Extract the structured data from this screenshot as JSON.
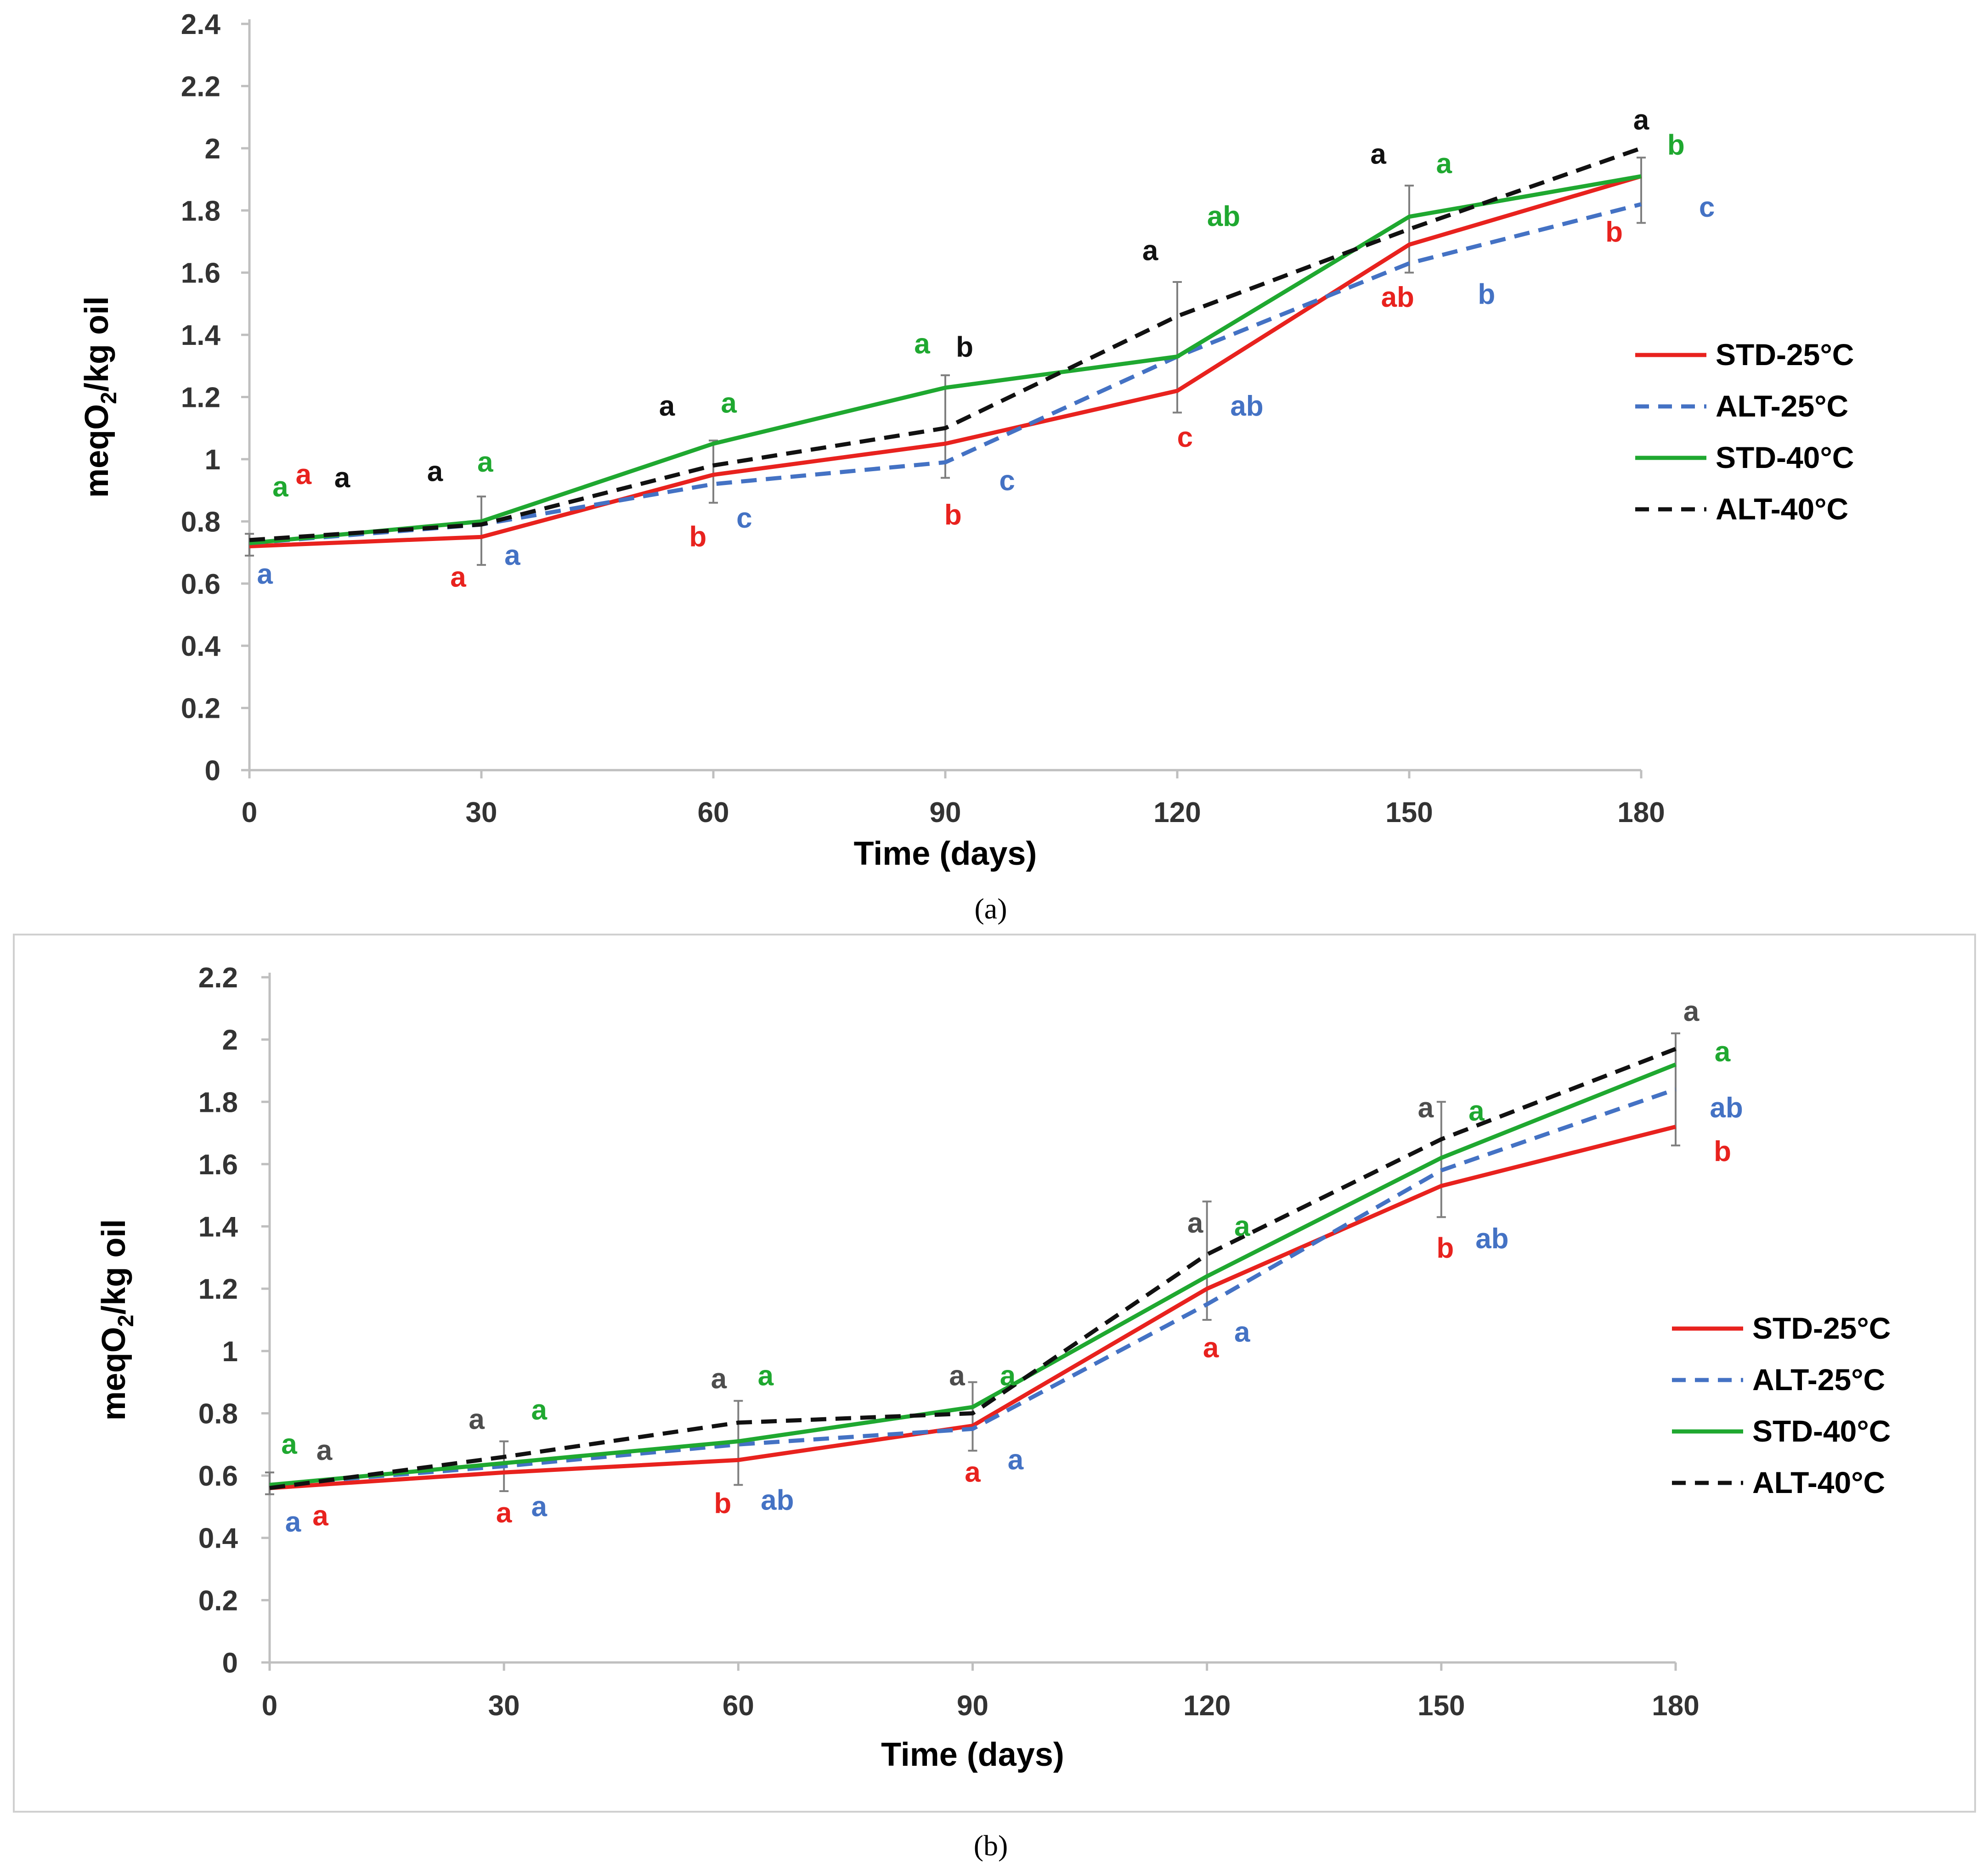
{
  "figure": {
    "caption_a": "(a)",
    "caption_b": "(b)"
  },
  "chart_data": [
    {
      "type": "line",
      "panel": "a",
      "title": "",
      "xlabel": "Time (days)",
      "ylabel_main": "meqO",
      "ylabel_sub": "2",
      "ylabel_rest": "/kg oil",
      "x": [
        0,
        30,
        60,
        90,
        120,
        150,
        180
      ],
      "xticks": [
        "0",
        "30",
        "60",
        "90",
        "120",
        "150",
        "180"
      ],
      "ylim": [
        0,
        2.4
      ],
      "yticks": [
        "0",
        "0.2",
        "0.4",
        "0.6",
        "0.8",
        "1",
        "1.2",
        "1.4",
        "1.6",
        "1.8",
        "2",
        "2.2",
        "2.4"
      ],
      "grid": false,
      "legend_position": "right",
      "series": [
        {
          "name": "STD-25°C",
          "color": "#e8221e",
          "dash": "solid",
          "values": [
            0.72,
            0.75,
            0.95,
            1.05,
            1.22,
            1.69,
            1.91
          ]
        },
        {
          "name": "ALT-25°C",
          "color": "#4472c4",
          "dash": "dashed",
          "values": [
            0.73,
            0.79,
            0.92,
            0.99,
            1.33,
            1.63,
            1.82
          ]
        },
        {
          "name": "STD-40°C",
          "color": "#1fa830",
          "dash": "solid",
          "values": [
            0.73,
            0.8,
            1.05,
            1.23,
            1.33,
            1.78,
            1.91
          ]
        },
        {
          "name": "ALT-40°C",
          "color": "#111111",
          "dash": "dashed",
          "values": [
            0.74,
            0.79,
            0.98,
            1.1,
            1.46,
            1.74,
            2.0
          ]
        }
      ],
      "error_bars": [
        {
          "x": 0,
          "low": 0.69,
          "high": 0.76
        },
        {
          "x": 30,
          "low": 0.66,
          "high": 0.88
        },
        {
          "x": 60,
          "low": 0.86,
          "high": 1.06
        },
        {
          "x": 90,
          "low": 0.94,
          "high": 1.27
        },
        {
          "x": 120,
          "low": 1.15,
          "high": 1.57
        },
        {
          "x": 150,
          "low": 1.6,
          "high": 1.88
        },
        {
          "x": 180,
          "low": 1.76,
          "high": 1.97
        }
      ],
      "annotations": [
        {
          "text": "a",
          "x": 4,
          "y": 0.88,
          "color": "#1fa830"
        },
        {
          "text": "a",
          "x": 7,
          "y": 0.92,
          "color": "#e8221e"
        },
        {
          "text": "a",
          "x": 12,
          "y": 0.91,
          "color": "#111111"
        },
        {
          "text": "a",
          "x": 2,
          "y": 0.6,
          "color": "#4472c4"
        },
        {
          "text": "a",
          "x": 24,
          "y": 0.93,
          "color": "#111111"
        },
        {
          "text": "a",
          "x": 30.5,
          "y": 0.96,
          "color": "#1fa830"
        },
        {
          "text": "a",
          "x": 27,
          "y": 0.59,
          "color": "#e8221e"
        },
        {
          "text": "a",
          "x": 34,
          "y": 0.66,
          "color": "#4472c4"
        },
        {
          "text": "a",
          "x": 54,
          "y": 1.14,
          "color": "#111111"
        },
        {
          "text": "a",
          "x": 62,
          "y": 1.15,
          "color": "#1fa830"
        },
        {
          "text": "b",
          "x": 58,
          "y": 0.72,
          "color": "#e8221e"
        },
        {
          "text": "c",
          "x": 64,
          "y": 0.78,
          "color": "#4472c4"
        },
        {
          "text": "a",
          "x": 87,
          "y": 1.34,
          "color": "#1fa830"
        },
        {
          "text": "b",
          "x": 92.5,
          "y": 1.33,
          "color": "#111111"
        },
        {
          "text": "b",
          "x": 91,
          "y": 0.79,
          "color": "#e8221e"
        },
        {
          "text": "c",
          "x": 98,
          "y": 0.9,
          "color": "#4472c4"
        },
        {
          "text": "a",
          "x": 116.5,
          "y": 1.64,
          "color": "#111111"
        },
        {
          "text": "ab",
          "x": 126,
          "y": 1.75,
          "color": "#1fa830"
        },
        {
          "text": "c",
          "x": 121,
          "y": 1.04,
          "color": "#e8221e"
        },
        {
          "text": "ab",
          "x": 129,
          "y": 1.14,
          "color": "#4472c4"
        },
        {
          "text": "a",
          "x": 146,
          "y": 1.95,
          "color": "#111111"
        },
        {
          "text": "a",
          "x": 154.5,
          "y": 1.92,
          "color": "#1fa830"
        },
        {
          "text": "ab",
          "x": 148.5,
          "y": 1.49,
          "color": "#e8221e"
        },
        {
          "text": "b",
          "x": 160,
          "y": 1.5,
          "color": "#4472c4"
        },
        {
          "text": "a",
          "x": 180,
          "y": 2.06,
          "color": "#111111"
        },
        {
          "text": "b",
          "x": 184.5,
          "y": 1.98,
          "color": "#1fa830"
        },
        {
          "text": "b",
          "x": 176.5,
          "y": 1.7,
          "color": "#e8221e"
        },
        {
          "text": "c",
          "x": 188.5,
          "y": 1.78,
          "color": "#4472c4"
        }
      ]
    },
    {
      "type": "line",
      "panel": "b",
      "title": "",
      "xlabel": "Time (days)",
      "ylabel_main": "meqO",
      "ylabel_sub": "2",
      "ylabel_rest": "/kg oil",
      "x": [
        0,
        30,
        60,
        90,
        120,
        150,
        180
      ],
      "xticks": [
        "0",
        "30",
        "60",
        "90",
        "120",
        "150",
        "180"
      ],
      "ylim": [
        0,
        2.2
      ],
      "yticks": [
        "0",
        "0.2",
        "0.4",
        "0.6",
        "0.8",
        "1",
        "1.2",
        "1.4",
        "1.6",
        "1.8",
        "2",
        "2.2"
      ],
      "grid": false,
      "legend_position": "right",
      "series": [
        {
          "name": "STD-25°C",
          "color": "#e8221e",
          "dash": "solid",
          "values": [
            0.56,
            0.61,
            0.65,
            0.76,
            1.2,
            1.53,
            1.72
          ]
        },
        {
          "name": "ALT-25°C",
          "color": "#4472c4",
          "dash": "dashed",
          "values": [
            0.57,
            0.63,
            0.7,
            0.75,
            1.15,
            1.58,
            1.84
          ]
        },
        {
          "name": "STD-40°C",
          "color": "#1fa830",
          "dash": "solid",
          "values": [
            0.57,
            0.64,
            0.71,
            0.82,
            1.24,
            1.62,
            1.92
          ]
        },
        {
          "name": "ALT-40°C",
          "color": "#111111",
          "dash": "dashed",
          "values": [
            0.56,
            0.66,
            0.77,
            0.8,
            1.31,
            1.68,
            1.97
          ]
        }
      ],
      "error_bars": [
        {
          "x": 0,
          "low": 0.54,
          "high": 0.61
        },
        {
          "x": 30,
          "low": 0.55,
          "high": 0.71
        },
        {
          "x": 60,
          "low": 0.57,
          "high": 0.84
        },
        {
          "x": 90,
          "low": 0.68,
          "high": 0.9
        },
        {
          "x": 120,
          "low": 1.1,
          "high": 1.48
        },
        {
          "x": 150,
          "low": 1.43,
          "high": 1.8
        },
        {
          "x": 180,
          "low": 1.66,
          "high": 2.02
        }
      ],
      "annotations": [
        {
          "text": "a",
          "x": 2.5,
          "y": 0.67,
          "color": "#1fa830"
        },
        {
          "text": "a",
          "x": 7,
          "y": 0.65,
          "color": "#4d4d4d"
        },
        {
          "text": "a",
          "x": 3,
          "y": 0.42,
          "color": "#4472c4"
        },
        {
          "text": "a",
          "x": 6.5,
          "y": 0.44,
          "color": "#e8221e"
        },
        {
          "text": "a",
          "x": 26.5,
          "y": 0.75,
          "color": "#4d4d4d"
        },
        {
          "text": "a",
          "x": 34.5,
          "y": 0.78,
          "color": "#1fa830"
        },
        {
          "text": "a",
          "x": 30,
          "y": 0.45,
          "color": "#e8221e"
        },
        {
          "text": "a",
          "x": 34.5,
          "y": 0.47,
          "color": "#4472c4"
        },
        {
          "text": "a",
          "x": 57.5,
          "y": 0.88,
          "color": "#4d4d4d"
        },
        {
          "text": "a",
          "x": 63.5,
          "y": 0.89,
          "color": "#1fa830"
        },
        {
          "text": "b",
          "x": 58,
          "y": 0.48,
          "color": "#e8221e"
        },
        {
          "text": "ab",
          "x": 65,
          "y": 0.49,
          "color": "#4472c4"
        },
        {
          "text": "a",
          "x": 88,
          "y": 0.89,
          "color": "#4d4d4d"
        },
        {
          "text": "a",
          "x": 94.5,
          "y": 0.89,
          "color": "#1fa830"
        },
        {
          "text": "a",
          "x": 90,
          "y": 0.58,
          "color": "#e8221e"
        },
        {
          "text": "a",
          "x": 95.5,
          "y": 0.62,
          "color": "#4472c4"
        },
        {
          "text": "a",
          "x": 118.5,
          "y": 1.38,
          "color": "#4d4d4d"
        },
        {
          "text": "a",
          "x": 124.5,
          "y": 1.37,
          "color": "#1fa830"
        },
        {
          "text": "a",
          "x": 120.5,
          "y": 0.98,
          "color": "#e8221e"
        },
        {
          "text": "a",
          "x": 124.5,
          "y": 1.03,
          "color": "#4472c4"
        },
        {
          "text": "a",
          "x": 148,
          "y": 1.75,
          "color": "#4d4d4d"
        },
        {
          "text": "a",
          "x": 154.5,
          "y": 1.74,
          "color": "#1fa830"
        },
        {
          "text": "b",
          "x": 150.5,
          "y": 1.3,
          "color": "#e8221e"
        },
        {
          "text": "ab",
          "x": 156.5,
          "y": 1.33,
          "color": "#4472c4"
        },
        {
          "text": "a",
          "x": 182,
          "y": 2.06,
          "color": "#4d4d4d"
        },
        {
          "text": "a",
          "x": 186,
          "y": 1.93,
          "color": "#1fa830"
        },
        {
          "text": "ab",
          "x": 186.5,
          "y": 1.75,
          "color": "#4472c4"
        },
        {
          "text": "b",
          "x": 186,
          "y": 1.61,
          "color": "#e8221e"
        }
      ]
    }
  ]
}
